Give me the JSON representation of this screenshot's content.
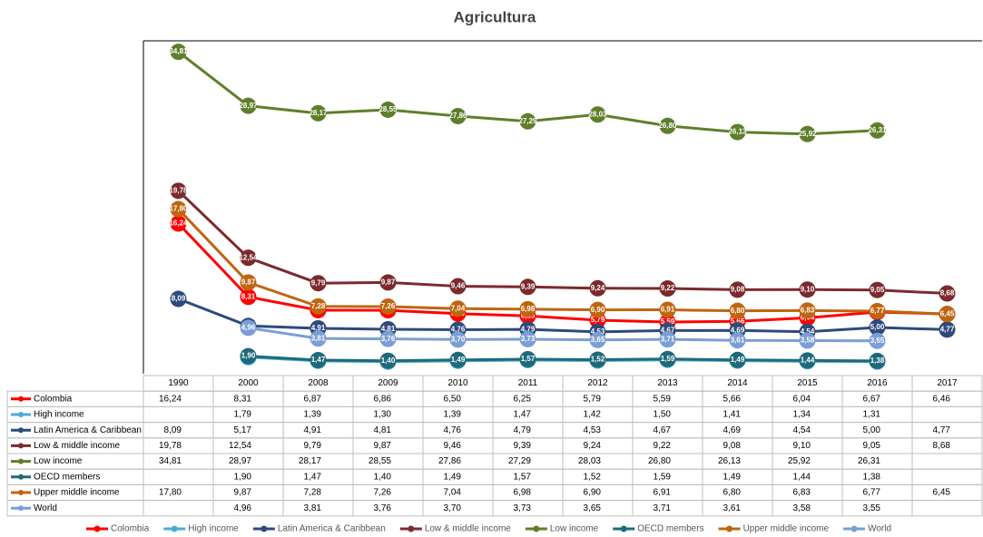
{
  "chart_data": {
    "type": "line",
    "title": "Agricultura",
    "categories": [
      "1990",
      "2000",
      "2008",
      "2009",
      "2010",
      "2011",
      "2012",
      "2013",
      "2014",
      "2015",
      "2016",
      "2017"
    ],
    "ylim": [
      0,
      36
    ],
    "series": [
      {
        "name": "Colombia",
        "color": "#ff0000",
        "values": [
          16.24,
          8.31,
          6.87,
          6.86,
          6.5,
          6.25,
          5.79,
          5.59,
          5.66,
          6.04,
          6.67,
          6.46
        ],
        "value_labels": [
          "16,24",
          "8,31",
          "6,87",
          "6,86",
          "6,50",
          "6,25",
          "5,79",
          "5,59",
          "5,66",
          "6,04",
          "6,67",
          "6,46"
        ]
      },
      {
        "name": "High income",
        "color": "#4bacd6",
        "values": [
          null,
          1.79,
          1.39,
          1.3,
          1.39,
          1.47,
          1.42,
          1.5,
          1.41,
          1.34,
          1.31,
          null
        ],
        "value_labels": [
          null,
          "1,79",
          "1,39",
          "1,30",
          "1,39",
          "1,47",
          "1,42",
          "1,50",
          "1,41",
          "1,34",
          "1,31",
          null
        ]
      },
      {
        "name": "Latin America & Caribbean",
        "color": "#2e4a7d",
        "values": [
          8.09,
          5.17,
          4.91,
          4.81,
          4.76,
          4.79,
          4.53,
          4.67,
          4.69,
          4.54,
          5.0,
          4.77
        ],
        "value_labels": [
          "8,09",
          "5,17",
          "4,91",
          "4,81",
          "4,76",
          "4,79",
          "4,53",
          "4,67",
          "4,69",
          "4,54",
          "5,00",
          "4,77"
        ]
      },
      {
        "name": "Low & middle income",
        "color": "#7b2a2e",
        "values": [
          19.78,
          12.54,
          9.79,
          9.87,
          9.46,
          9.39,
          9.24,
          9.22,
          9.08,
          9.1,
          9.05,
          8.68
        ],
        "value_labels": [
          "19,78",
          "12,54",
          "9,79",
          "9,87",
          "9,46",
          "9,39",
          "9,24",
          "9,22",
          "9,08",
          "9,10",
          "9,05",
          "8,68"
        ]
      },
      {
        "name": "Low income",
        "color": "#5e7f2a",
        "values": [
          34.81,
          28.97,
          28.17,
          28.55,
          27.86,
          27.29,
          28.03,
          26.8,
          26.13,
          25.92,
          26.31,
          null
        ],
        "value_labels": [
          "34,81",
          "28,97",
          "28,17",
          "28,55",
          "27,86",
          "27,29",
          "28,03",
          "26,80",
          "26,13",
          "25,92",
          "26,31",
          null
        ]
      },
      {
        "name": "OECD members",
        "color": "#1f6a7a",
        "values": [
          null,
          1.9,
          1.47,
          1.4,
          1.49,
          1.57,
          1.52,
          1.59,
          1.49,
          1.44,
          1.38,
          null
        ],
        "value_labels": [
          null,
          "1,90",
          "1,47",
          "1,40",
          "1,49",
          "1,57",
          "1,52",
          "1,59",
          "1,49",
          "1,44",
          "1,38",
          null
        ]
      },
      {
        "name": "Upper middle income",
        "color": "#c0650f",
        "values": [
          17.8,
          9.87,
          7.28,
          7.26,
          7.04,
          6.98,
          6.9,
          6.91,
          6.8,
          6.83,
          6.77,
          6.45
        ],
        "value_labels": [
          "17,80",
          "9,87",
          "7,28",
          "7,26",
          "7,04",
          "6,98",
          "6,90",
          "6,91",
          "6,80",
          "6,83",
          "6,77",
          "6,45"
        ]
      },
      {
        "name": "World",
        "color": "#7a9ed6",
        "values": [
          null,
          4.96,
          3.81,
          3.76,
          3.7,
          3.73,
          3.65,
          3.71,
          3.61,
          3.58,
          3.55,
          null
        ],
        "value_labels": [
          null,
          "4,96",
          "3,81",
          "3,76",
          "3,70",
          "3,73",
          "3,65",
          "3,71",
          "3,61",
          "3,58",
          "3,55",
          null
        ]
      }
    ]
  }
}
